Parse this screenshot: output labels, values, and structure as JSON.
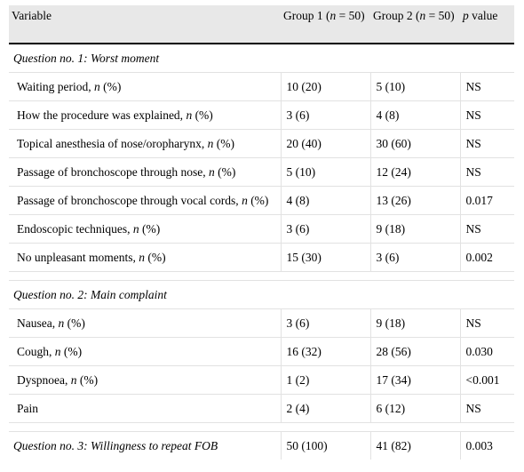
{
  "header": {
    "variable": "Variable",
    "group1_pre": "Group 1 (",
    "group1_n": "n",
    "group1_post": " = 50)",
    "group2_pre": "Group 2 (",
    "group2_n": "n",
    "group2_post": " = 50)",
    "p_italic": "p",
    "p_rest": " value"
  },
  "section1": {
    "title": "Question no. 1: Worst moment",
    "rows": [
      {
        "label": "Waiting period, ",
        "g1": "10 (20)",
        "g2": "5 (10)",
        "p": "NS"
      },
      {
        "label": "How the procedure was explained, ",
        "g1": "3 (6)",
        "g2": "4 (8)",
        "p": "NS"
      },
      {
        "label": "Topical anesthesia of nose/oropharynx, ",
        "g1": "20 (40)",
        "g2": "30 (60)",
        "p": "NS"
      },
      {
        "label": "Passage of bronchoscope through nose, ",
        "g1": "5 (10)",
        "g2": "12 (24)",
        "p": "NS"
      },
      {
        "label": "Passage of bronchoscope through vocal cords, ",
        "g1": "4 (8)",
        "g2": "13 (26)",
        "p": "0.017"
      },
      {
        "label": "Endoscopic techniques, ",
        "g1": "3 (6)",
        "g2": "9 (18)",
        "p": "NS"
      },
      {
        "label": "No unpleasant moments, ",
        "g1": "15 (30)",
        "g2": "3 (6)",
        "p": "0.002"
      }
    ]
  },
  "section2": {
    "title": "Question no. 2: Main complaint",
    "rows": [
      {
        "label": "Nausea, ",
        "g1": "3 (6)",
        "g2": "9 (18)",
        "p": "NS"
      },
      {
        "label": "Cough, ",
        "g1": "16 (32)",
        "g2": "28 (56)",
        "p": "0.030"
      },
      {
        "label": "Dyspnoea, ",
        "g1": "1 (2)",
        "g2": "17 (34)",
        "p": "<0.001"
      },
      {
        "label": "Pain",
        "g1": "2 (4)",
        "g2": "6 (12)",
        "p": "NS"
      }
    ]
  },
  "section3": {
    "title": "Question no. 3: Willingness to repeat FOB",
    "g1": "50 (100)",
    "g2": "41 (82)",
    "p": "0.003"
  },
  "units": {
    "n_italic": "n",
    "pct": " (%)"
  }
}
